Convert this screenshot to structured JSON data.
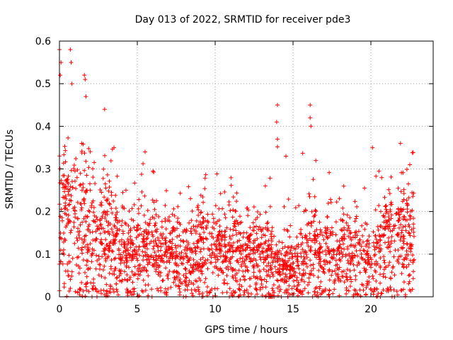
{
  "chart_data": {
    "type": "scatter",
    "title": "Day 013 of 2022, SRMTID for receiver pde3",
    "xlabel": "GPS time / hours",
    "ylabel": "SRMTID / TECUs",
    "xlim": [
      0,
      24
    ],
    "ylim": [
      0,
      0.6
    ],
    "xticks": [
      0,
      5,
      10,
      15,
      20
    ],
    "xtick_labels": [
      "0",
      "5",
      "10",
      "15",
      "20"
    ],
    "yticks": [
      0,
      0.1,
      0.2,
      0.3,
      0.4,
      0.5,
      0.6
    ],
    "ytick_labels": [
      "0",
      "0.1",
      "0.2",
      "0.3",
      "0.4",
      "0.5",
      "0.6"
    ],
    "grid": true,
    "marker": "+",
    "series_color": "#ff0000",
    "n_points_approx": 2400,
    "x_range_observed": [
      0,
      22.8
    ],
    "notable_points": [
      {
        "x": 0.0,
        "y": 0.58
      },
      {
        "x": 0.1,
        "y": 0.55
      },
      {
        "x": 0.05,
        "y": 0.52
      },
      {
        "x": 0.7,
        "y": 0.58
      },
      {
        "x": 0.75,
        "y": 0.55
      },
      {
        "x": 0.8,
        "y": 0.5
      },
      {
        "x": 1.6,
        "y": 0.52
      },
      {
        "x": 1.65,
        "y": 0.51
      },
      {
        "x": 1.7,
        "y": 0.47
      },
      {
        "x": 2.9,
        "y": 0.44
      },
      {
        "x": 3.5,
        "y": 0.35
      },
      {
        "x": 5.5,
        "y": 0.34
      },
      {
        "x": 14.0,
        "y": 0.45
      },
      {
        "x": 13.95,
        "y": 0.41
      },
      {
        "x": 14.0,
        "y": 0.37
      },
      {
        "x": 16.1,
        "y": 0.45
      },
      {
        "x": 16.1,
        "y": 0.42
      },
      {
        "x": 16.15,
        "y": 0.4
      },
      {
        "x": 20.1,
        "y": 0.35
      },
      {
        "x": 21.9,
        "y": 0.36
      },
      {
        "x": 22.5,
        "y": 0.31
      }
    ],
    "envelope_hourly": [
      {
        "hour": 0,
        "median": 0.2,
        "max": 0.58
      },
      {
        "hour": 1,
        "median": 0.19,
        "max": 0.55
      },
      {
        "hour": 2,
        "median": 0.15,
        "max": 0.52
      },
      {
        "hour": 3,
        "median": 0.16,
        "max": 0.44
      },
      {
        "hour": 4,
        "median": 0.1,
        "max": 0.26
      },
      {
        "hour": 5,
        "median": 0.11,
        "max": 0.34
      },
      {
        "hour": 6,
        "median": 0.12,
        "max": 0.3
      },
      {
        "hour": 7,
        "median": 0.1,
        "max": 0.26
      },
      {
        "hour": 8,
        "median": 0.09,
        "max": 0.27
      },
      {
        "hour": 9,
        "median": 0.12,
        "max": 0.29
      },
      {
        "hour": 10,
        "median": 0.11,
        "max": 0.29
      },
      {
        "hour": 11,
        "median": 0.11,
        "max": 0.28
      },
      {
        "hour": 12,
        "median": 0.1,
        "max": 0.25
      },
      {
        "hour": 13,
        "median": 0.1,
        "max": 0.22
      },
      {
        "hour": 14,
        "median": 0.08,
        "max": 0.45
      },
      {
        "hour": 15,
        "median": 0.07,
        "max": 0.24
      },
      {
        "hour": 16,
        "median": 0.12,
        "max": 0.45
      },
      {
        "hour": 17,
        "median": 0.11,
        "max": 0.31
      },
      {
        "hour": 18,
        "median": 0.1,
        "max": 0.31
      },
      {
        "hour": 19,
        "median": 0.09,
        "max": 0.26
      },
      {
        "hour": 20,
        "median": 0.08,
        "max": 0.35
      },
      {
        "hour": 21,
        "median": 0.15,
        "max": 0.33
      },
      {
        "hour": 22,
        "median": 0.15,
        "max": 0.36
      }
    ]
  }
}
